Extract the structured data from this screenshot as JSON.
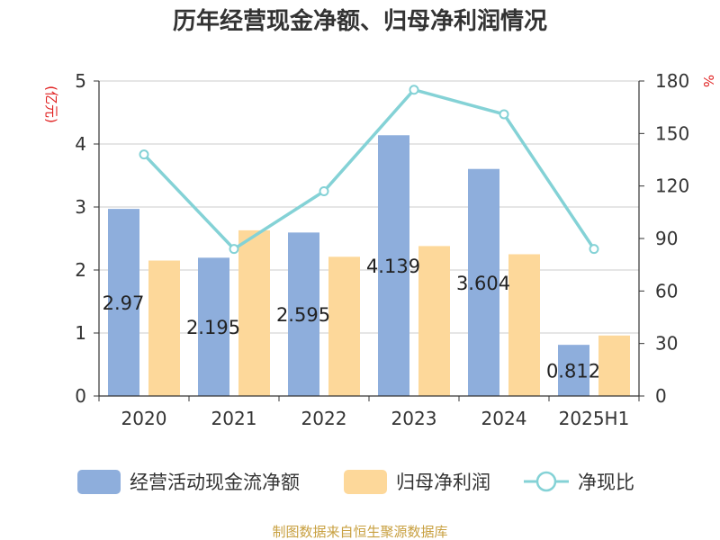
{
  "chart_data": {
    "type": "bar",
    "title": "历年经营现金净额、归母净利润情况",
    "left_unit": "(亿元)",
    "right_unit": "%",
    "categories": [
      "2020",
      "2021",
      "2022",
      "2023",
      "2024",
      "2025H1"
    ],
    "ylim": [
      0,
      5
    ],
    "y_ticks": [
      "0",
      "1",
      "2",
      "3",
      "4",
      "5"
    ],
    "y2lim": [
      0,
      180
    ],
    "y2_ticks": [
      "0",
      "30",
      "60",
      "90",
      "120",
      "150",
      "180"
    ],
    "series": [
      {
        "name": "经营活动现金流净额",
        "type": "bar",
        "axis": "left",
        "color": "#8eaedc",
        "values": [
          2.97,
          2.195,
          2.595,
          4.139,
          3.604,
          0.812
        ],
        "labels": [
          "2.97",
          "2.195",
          "2.595",
          "4.139",
          "3.604",
          "0.812"
        ]
      },
      {
        "name": "归母净利润",
        "type": "bar",
        "axis": "left",
        "color": "#fdd89a",
        "values": [
          2.15,
          2.63,
          2.21,
          2.38,
          2.25,
          0.96
        ]
      },
      {
        "name": "净现比",
        "type": "line",
        "axis": "right",
        "color": "#84d2d6",
        "values": [
          138,
          84,
          117,
          175,
          161,
          84
        ]
      }
    ],
    "grid": true,
    "legend_position": "bottom"
  },
  "footer": {
    "source": "制图数据来自恒生聚源数据库"
  }
}
